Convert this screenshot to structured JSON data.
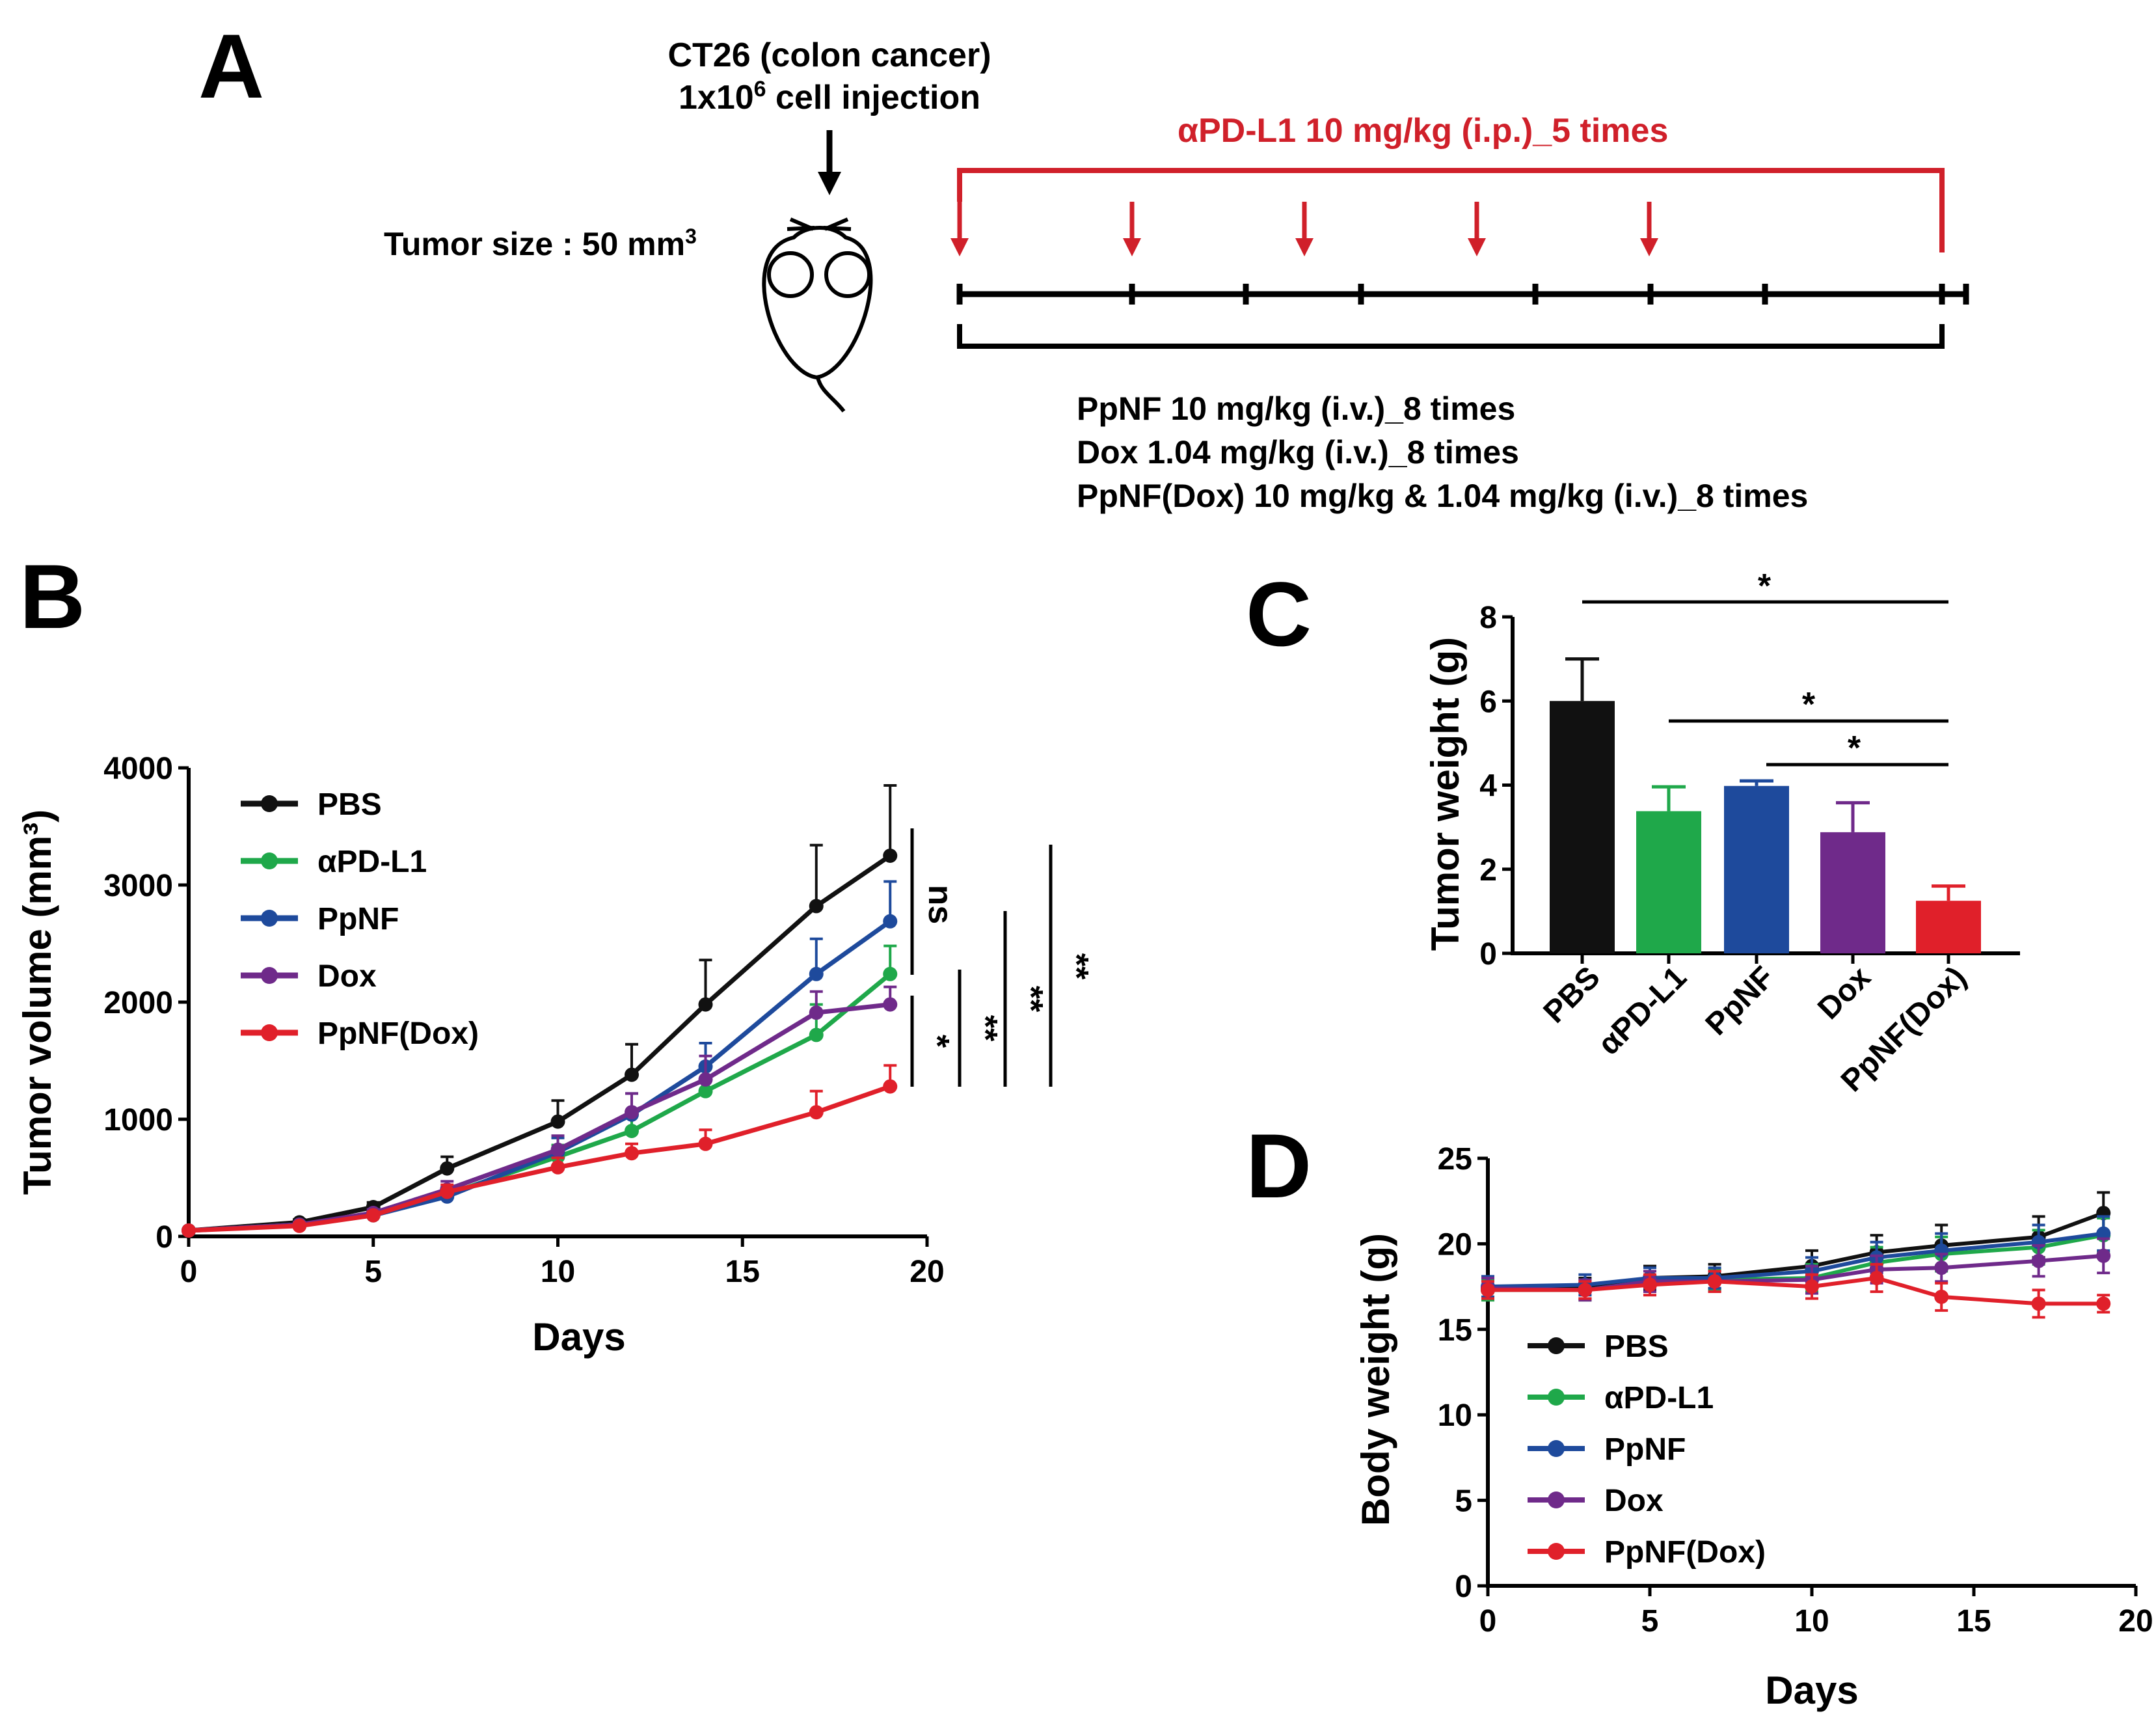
{
  "panels": {
    "A": "A",
    "B": "B",
    "C": "C",
    "D": "D"
  },
  "panel_a": {
    "cell_line": "CT26 (colon cancer)",
    "injection_prefix": "1x10",
    "injection_exp": "6",
    "injection_suffix": " cell injection",
    "tumor_size_prefix": "Tumor size : 50 mm",
    "tumor_size_exp": "3",
    "apdl1_regimen": "αPD-L1  10 mg/kg (i.p.)_5 times",
    "treatments": [
      "PpNF 10 mg/kg (i.v.)_8 times",
      "Dox 1.04 mg/kg (i.v.)_8 times",
      "PpNF(Dox) 10 mg/kg & 1.04 mg/kg (i.v.)_8 times"
    ]
  },
  "colors": {
    "PBS": "#111111",
    "aPD-L1": "#1fa84a",
    "PpNF": "#1e4a9c",
    "Dox": "#6f2a8a",
    "PpNF(Dox)": "#e0202a",
    "regimen_red": "#d0202a"
  },
  "chart_data": [
    {
      "id": "B",
      "type": "line",
      "title": "",
      "xlabel": "Days",
      "ylabel": "Tumor volume (mm³)",
      "xlim": [
        0,
        20
      ],
      "ylim": [
        0,
        4000
      ],
      "xticks": [
        0,
        5,
        10,
        15,
        20
      ],
      "yticks": [
        0,
        1000,
        2000,
        3000,
        4000
      ],
      "x": [
        0,
        3,
        5,
        7,
        10,
        12,
        14,
        17,
        19
      ],
      "series": [
        {
          "name": "PBS",
          "values": [
            50,
            120,
            250,
            580,
            980,
            1380,
            1980,
            2820,
            3250
          ],
          "errors": [
            10,
            25,
            40,
            100,
            180,
            260,
            380,
            520,
            600
          ]
        },
        {
          "name": "αPD-L1",
          "values": [
            50,
            100,
            180,
            360,
            680,
            900,
            1240,
            1720,
            2240
          ],
          "errors": [
            10,
            20,
            30,
            60,
            100,
            140,
            200,
            260,
            240
          ]
        },
        {
          "name": "PpNF",
          "values": [
            50,
            100,
            180,
            340,
            720,
            1040,
            1450,
            2240,
            2690
          ],
          "errors": [
            10,
            20,
            30,
            60,
            120,
            180,
            200,
            300,
            340
          ]
        },
        {
          "name": "Dox",
          "values": [
            50,
            100,
            200,
            400,
            740,
            1060,
            1340,
            1910,
            1980
          ],
          "errors": [
            10,
            20,
            30,
            70,
            120,
            160,
            200,
            180,
            150
          ]
        },
        {
          "name": "PpNF(Dox)",
          "values": [
            50,
            90,
            180,
            380,
            590,
            710,
            790,
            1060,
            1280
          ],
          "errors": [
            10,
            20,
            30,
            60,
            80,
            80,
            120,
            180,
            180
          ]
        }
      ],
      "legend": "top-left",
      "annotations": [
        "ns",
        "*",
        "**",
        "**",
        "**"
      ]
    },
    {
      "id": "C",
      "type": "bar",
      "title": "",
      "xlabel": "",
      "ylabel": "Tumor weight (g)",
      "ylim": [
        0,
        8
      ],
      "yticks": [
        0,
        2,
        4,
        6,
        8
      ],
      "categories": [
        "PBS",
        "αPD-L1",
        "PpNF",
        "Dox",
        "PpNF(Dox)"
      ],
      "values": [
        6.0,
        3.38,
        3.98,
        2.88,
        1.25
      ],
      "errors": [
        1.0,
        0.58,
        0.12,
        0.7,
        0.35
      ],
      "annotations": [
        "*",
        "*",
        "*"
      ]
    },
    {
      "id": "D",
      "type": "line",
      "title": "",
      "xlabel": "Days",
      "ylabel": "Body weight (g)",
      "xlim": [
        0,
        20
      ],
      "ylim": [
        0,
        25
      ],
      "xticks": [
        0,
        5,
        10,
        15,
        20
      ],
      "yticks": [
        0,
        5,
        10,
        15,
        20,
        25
      ],
      "x": [
        0,
        3,
        5,
        7,
        10,
        12,
        14,
        17,
        19
      ],
      "series": [
        {
          "name": "PBS",
          "values": [
            17.4,
            17.4,
            18.0,
            18.1,
            18.7,
            19.5,
            19.9,
            20.4,
            21.8
          ],
          "errors": [
            0.6,
            0.6,
            0.7,
            0.7,
            0.9,
            1.0,
            1.2,
            1.2,
            1.2
          ]
        },
        {
          "name": "αPD-L1",
          "values": [
            17.3,
            17.3,
            17.8,
            17.9,
            18.0,
            18.9,
            19.4,
            19.8,
            20.5
          ],
          "errors": [
            0.6,
            0.6,
            0.6,
            0.6,
            0.8,
            0.9,
            1.0,
            1.0,
            1.0
          ]
        },
        {
          "name": "PpNF",
          "values": [
            17.5,
            17.6,
            18.0,
            18.0,
            18.4,
            19.2,
            19.6,
            20.1,
            20.6
          ],
          "errors": [
            0.6,
            0.6,
            0.6,
            0.6,
            0.8,
            0.9,
            1.0,
            1.0,
            1.0
          ]
        },
        {
          "name": "Dox",
          "values": [
            17.4,
            17.3,
            17.8,
            17.8,
            17.9,
            18.5,
            18.6,
            19.0,
            19.3
          ],
          "errors": [
            0.6,
            0.6,
            0.6,
            0.6,
            0.8,
            0.8,
            0.8,
            0.9,
            1.0
          ]
        },
        {
          "name": "PpNF(Dox)",
          "values": [
            17.3,
            17.3,
            17.6,
            17.8,
            17.5,
            18.0,
            16.9,
            16.5,
            16.5
          ],
          "errors": [
            0.5,
            0.5,
            0.6,
            0.6,
            0.7,
            0.8,
            0.8,
            0.8,
            0.5
          ]
        }
      ],
      "legend": "lower-left"
    }
  ]
}
